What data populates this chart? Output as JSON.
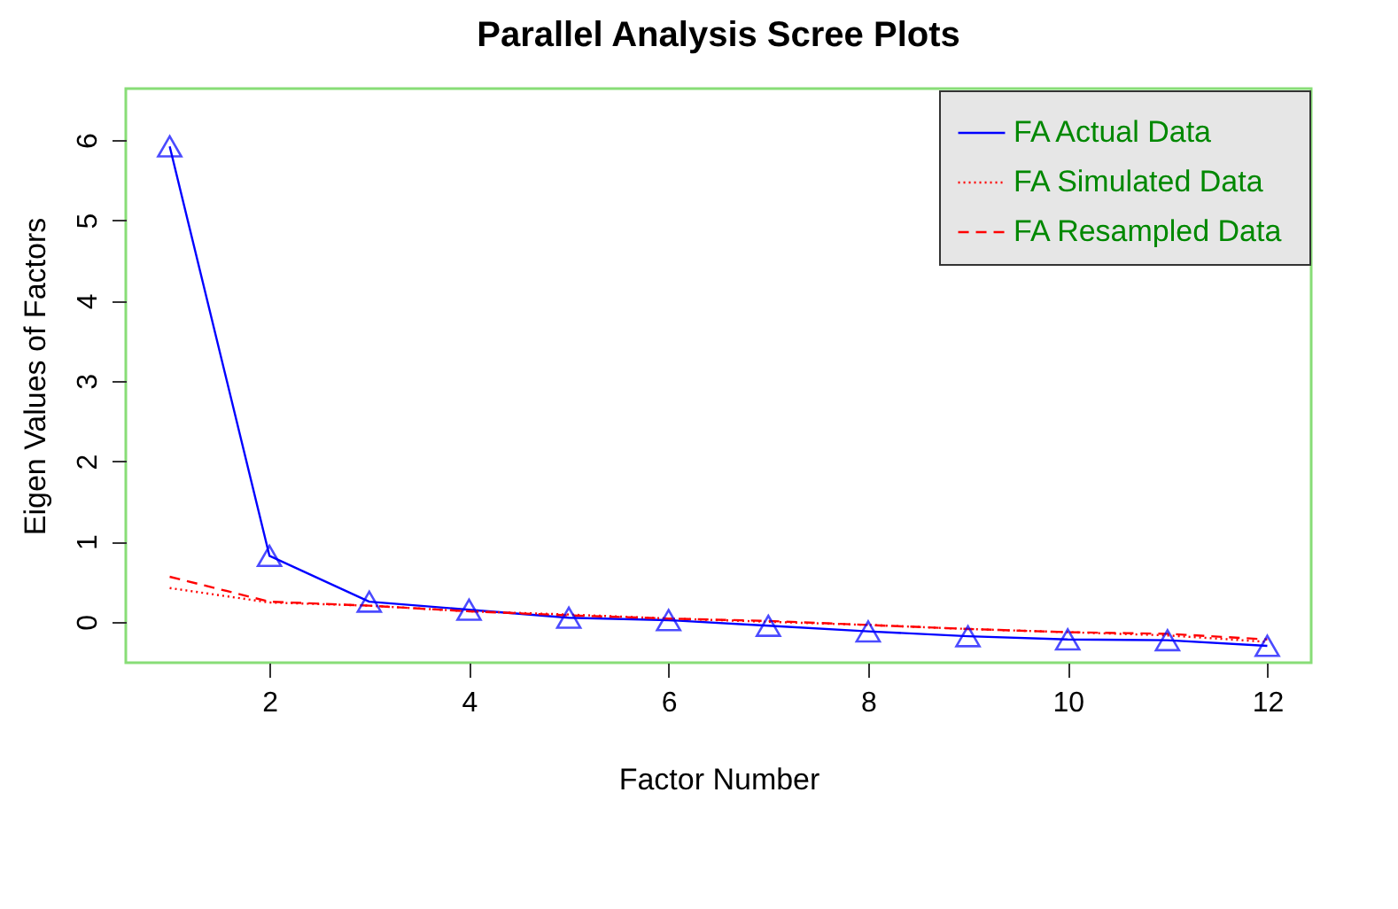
{
  "chart_data": {
    "type": "line",
    "title": "Parallel Analysis Scree Plots",
    "xlabel": "Factor Number",
    "ylabel": "Eigen Values of Factors",
    "x": [
      1,
      2,
      3,
      4,
      5,
      6,
      7,
      8,
      9,
      10,
      11,
      12
    ],
    "series": [
      {
        "name": "FA  Actual Data",
        "color": "#0000ff",
        "line_style": "solid",
        "marker": "triangle",
        "values": [
          5.92,
          0.82,
          0.25,
          0.15,
          0.05,
          0.02,
          -0.05,
          -0.12,
          -0.18,
          -0.22,
          -0.23,
          -0.3
        ]
      },
      {
        "name": "FA  Simulated Data",
        "color": "#ff0000",
        "line_style": "dotted",
        "marker": "none",
        "values": [
          0.42,
          0.24,
          0.2,
          0.13,
          0.09,
          0.04,
          0.0,
          -0.04,
          -0.09,
          -0.13,
          -0.17,
          -0.25
        ]
      },
      {
        "name": "FA  Resampled Data",
        "color": "#ff0000",
        "line_style": "dashed",
        "marker": "none",
        "values": [
          0.56,
          0.25,
          0.2,
          0.13,
          0.08,
          0.04,
          0.01,
          -0.04,
          -0.09,
          -0.13,
          -0.15,
          -0.22
        ]
      }
    ],
    "xlim": [
      0.56,
      12.44
    ],
    "ylim": [
      -0.51,
      6.64
    ],
    "xticks": [
      2,
      4,
      6,
      8,
      10,
      12
    ],
    "yticks": [
      0,
      1,
      2,
      3,
      4,
      5,
      6
    ],
    "legend": "top right"
  }
}
